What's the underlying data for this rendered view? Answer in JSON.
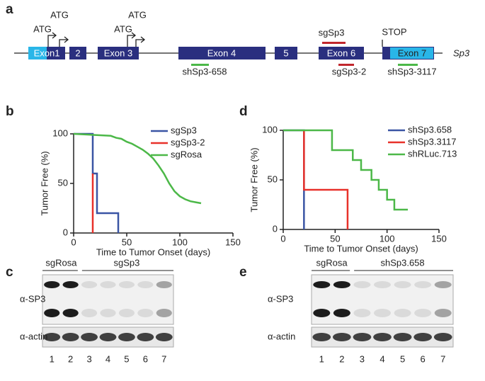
{
  "panel_labels": [
    "a",
    "b",
    "c",
    "d",
    "e"
  ],
  "gene_diagram": {
    "gene": "Sp3",
    "exons": [
      "Exon1",
      "2",
      "Exon 3",
      "Exon 4",
      "5",
      "Exon 6",
      "Exon 7"
    ],
    "start_codons": [
      "ATG",
      "ATG",
      "ATG",
      "ATG"
    ],
    "stop_codon": "STOP",
    "guides": [
      "sgSp3",
      "sgSp3-2"
    ],
    "hairpins": [
      "shSp3-658",
      "shSp3-3117"
    ]
  },
  "chart_data": [
    {
      "type": "line",
      "xlabel": "Time to Tumor Onset (days)",
      "ylabel": "Tumor Free (%)",
      "xlim": [
        0,
        150
      ],
      "xticks": [
        0,
        50,
        100,
        150
      ],
      "ylim": [
        0,
        100
      ],
      "yticks": [
        0,
        50,
        100
      ],
      "series": [
        {
          "name": "sgSp3",
          "color": "#3a55a4",
          "x": [
            0,
            18,
            18,
            22,
            22,
            42,
            42
          ],
          "values": [
            100,
            100,
            60,
            60,
            20,
            20,
            0
          ]
        },
        {
          "name": "sgSp3-2",
          "color": "#e8312a",
          "x": [
            18,
            18
          ],
          "values": [
            60,
            0
          ]
        },
        {
          "name": "sgRosa",
          "color": "#4cb848",
          "x": [
            0,
            35,
            40,
            45,
            50,
            55,
            60,
            65,
            70,
            75,
            80,
            85,
            90,
            95,
            100,
            105,
            110,
            115,
            120
          ],
          "values": [
            100,
            98,
            96,
            95,
            92,
            90,
            87,
            84,
            80,
            75,
            68,
            60,
            50,
            42,
            37,
            34,
            32,
            31,
            30
          ]
        }
      ]
    },
    {
      "type": "line",
      "xlabel": "Time to Tumor Onset (days)",
      "ylabel": "Tumor Free (%)",
      "xlim": [
        0,
        150
      ],
      "xticks": [
        0,
        50,
        100,
        150
      ],
      "ylim": [
        0,
        100
      ],
      "yticks": [
        0,
        50,
        100
      ],
      "series": [
        {
          "name": "shSp3.658",
          "color": "#3a55a4",
          "x": [
            0,
            20,
            20
          ],
          "values": [
            100,
            100,
            0
          ]
        },
        {
          "name": "shSp3.3117",
          "color": "#e8312a",
          "x": [
            20,
            20,
            62,
            62
          ],
          "values": [
            100,
            40,
            40,
            0
          ]
        },
        {
          "name": "shRLuc.713",
          "color": "#4cb848",
          "x": [
            0,
            47,
            47,
            67,
            67,
            75,
            75,
            85,
            85,
            92,
            92,
            100,
            100,
            107,
            107,
            120
          ],
          "values": [
            100,
            100,
            80,
            80,
            70,
            70,
            60,
            60,
            50,
            50,
            40,
            40,
            30,
            30,
            20,
            20
          ]
        }
      ]
    }
  ],
  "blots": [
    {
      "groups": [
        "sgRosa",
        "sgSp3"
      ],
      "rows": [
        "α-SP3",
        "α-actin"
      ],
      "lanes": [
        1,
        2,
        3,
        4,
        5,
        6,
        7
      ]
    },
    {
      "groups": [
        "sgRosa",
        "shSp3.658"
      ],
      "rows": [
        "α-SP3",
        "α-actin"
      ],
      "lanes": [
        1,
        2,
        3,
        4,
        5,
        6,
        7
      ]
    }
  ]
}
